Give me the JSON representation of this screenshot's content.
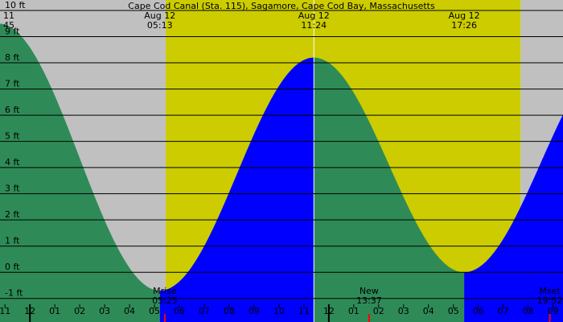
{
  "chart_data": {
    "type": "area",
    "title": "Cape Cod Canal (Sta. 115), Sagamore, Cape Cod Bay, Massachusetts",
    "ylim": [
      -1.9,
      10.4
    ],
    "y_ticks": [
      {
        "value": 10,
        "label": "10 ft"
      },
      {
        "value": 9,
        "label": "9 ft"
      },
      {
        "value": 8,
        "label": "8 ft"
      },
      {
        "value": 7,
        "label": "7 ft"
      },
      {
        "value": 6,
        "label": "6 ft"
      },
      {
        "value": 5,
        "label": "5 ft"
      },
      {
        "value": 4,
        "label": "4 ft"
      },
      {
        "value": 3,
        "label": "3 ft"
      },
      {
        "value": 2,
        "label": "2 ft"
      },
      {
        "value": 1,
        "label": "1 ft"
      },
      {
        "value": 0,
        "label": "0 ft"
      },
      {
        "value": -1,
        "label": "-1 ft"
      }
    ],
    "x_range_hours": [
      22.8,
      45.4
    ],
    "hour_ticks": [
      {
        "hour": 23,
        "label": "11"
      },
      {
        "hour": 24,
        "label": "12"
      },
      {
        "hour": 25,
        "label": "01"
      },
      {
        "hour": 26,
        "label": "02"
      },
      {
        "hour": 27,
        "label": "03"
      },
      {
        "hour": 28,
        "label": "04"
      },
      {
        "hour": 29,
        "label": "05"
      },
      {
        "hour": 30,
        "label": "06"
      },
      {
        "hour": 31,
        "label": "07"
      },
      {
        "hour": 32,
        "label": "08"
      },
      {
        "hour": 33,
        "label": "09"
      },
      {
        "hour": 34,
        "label": "10"
      },
      {
        "hour": 35,
        "label": "11"
      },
      {
        "hour": 36,
        "label": "12"
      },
      {
        "hour": 37,
        "label": "01"
      },
      {
        "hour": 38,
        "label": "02"
      },
      {
        "hour": 39,
        "label": "03"
      },
      {
        "hour": 40,
        "label": "04"
      },
      {
        "hour": 41,
        "label": "05"
      },
      {
        "hour": 42,
        "label": "06"
      },
      {
        "hour": 43,
        "label": "07"
      },
      {
        "hour": 44,
        "label": "08"
      },
      {
        "hour": 45,
        "label": "09"
      }
    ],
    "tide_extremes": [
      {
        "hour": 22.75,
        "height": 9.5,
        "label_top": "11",
        "label_bottom": "45"
      },
      {
        "hour": 29.217,
        "height": -0.7,
        "label_top": "Aug 12",
        "label_bottom": "05:13"
      },
      {
        "hour": 35.4,
        "height": 8.2,
        "label_top": "Aug 12",
        "label_bottom": "11:24"
      },
      {
        "hour": 41.433,
        "height": 0.0,
        "label_top": "Aug 12",
        "label_bottom": "17:26"
      },
      {
        "hour": 47.6,
        "height": 8.4
      }
    ],
    "daylight": {
      "start_hour": 29.45,
      "end_hour": 43.7
    },
    "now_hour": 35.4,
    "events": [
      {
        "hour": 29.417,
        "label_top": "Mrise",
        "label_bottom": "05:25"
      },
      {
        "hour": 37.617,
        "label_top": "New",
        "label_bottom": "13:37"
      },
      {
        "hour": 44.867,
        "label_top": "Mset",
        "label_bottom": "19:52"
      }
    ],
    "colors": {
      "night": "#c0c0c0",
      "day": "#cccc00",
      "falling_tide": "#2e8b57",
      "rising_tide": "#0000ff",
      "event_tick": "#ff0000"
    }
  }
}
